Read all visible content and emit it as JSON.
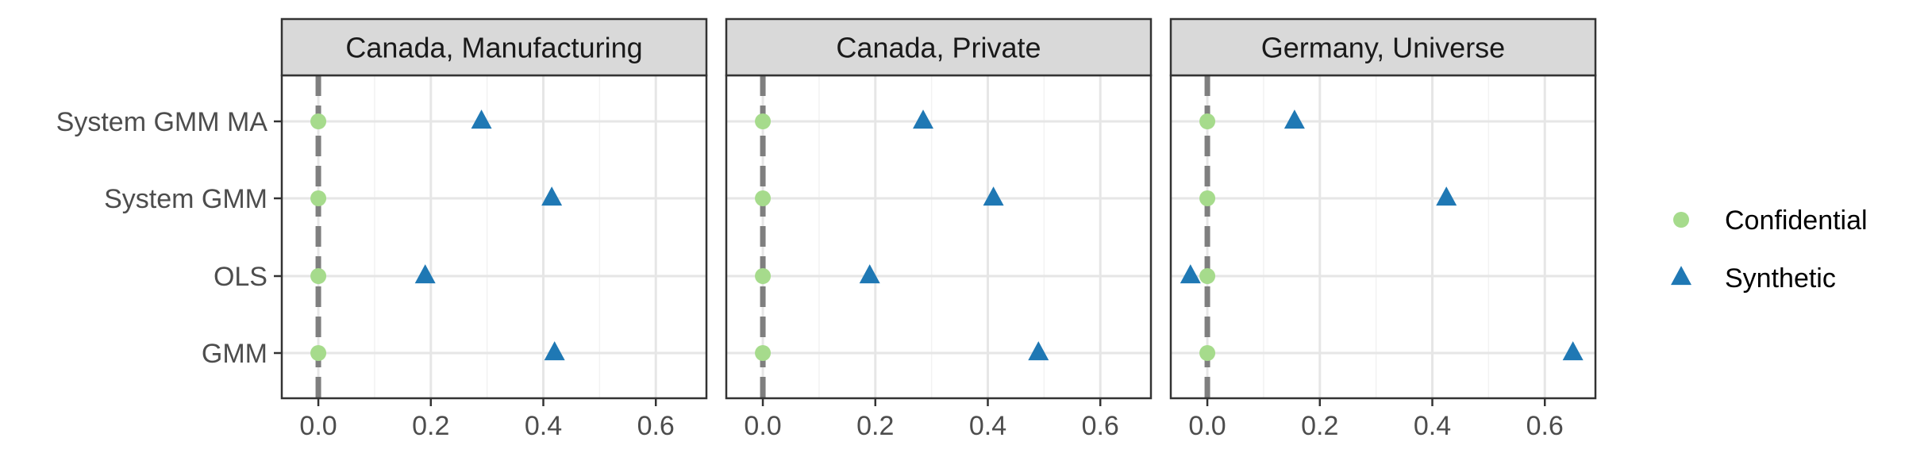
{
  "chart_data": {
    "type": "scatter",
    "facet_labels": [
      "Canada, Manufacturing",
      "Canada, Private",
      "Germany, Universe"
    ],
    "categories": [
      "System GMM MA",
      "System GMM",
      "OLS",
      "GMM"
    ],
    "x_ticks": [
      0.0,
      0.2,
      0.4,
      0.6
    ],
    "x_tick_labels": [
      "0.0",
      "0.2",
      "0.4",
      "0.6"
    ],
    "xlim": [
      -0.065,
      0.69
    ],
    "reference_line_x": 0,
    "grid": true,
    "legend_position": "right",
    "series": [
      {
        "name": "Confidential",
        "marker": "circle",
        "color": "#A6DB8C",
        "panels": [
          {
            "System GMM MA": 0,
            "System GMM": 0,
            "OLS": 0,
            "GMM": 0
          },
          {
            "System GMM MA": 0,
            "System GMM": 0,
            "OLS": 0,
            "GMM": 0
          },
          {
            "System GMM MA": 0,
            "System GMM": 0,
            "OLS": 0,
            "GMM": 0
          }
        ]
      },
      {
        "name": "Synthetic",
        "marker": "triangle",
        "color": "#1F78B4",
        "panels": [
          {
            "System GMM MA": 0.29,
            "System GMM": 0.415,
            "OLS": 0.19,
            "GMM": 0.42
          },
          {
            "System GMM MA": 0.285,
            "System GMM": 0.41,
            "OLS": 0.19,
            "GMM": 0.49
          },
          {
            "System GMM MA": 0.155,
            "System GMM": 0.425,
            "OLS": -0.03,
            "GMM": 0.65
          }
        ]
      }
    ]
  }
}
